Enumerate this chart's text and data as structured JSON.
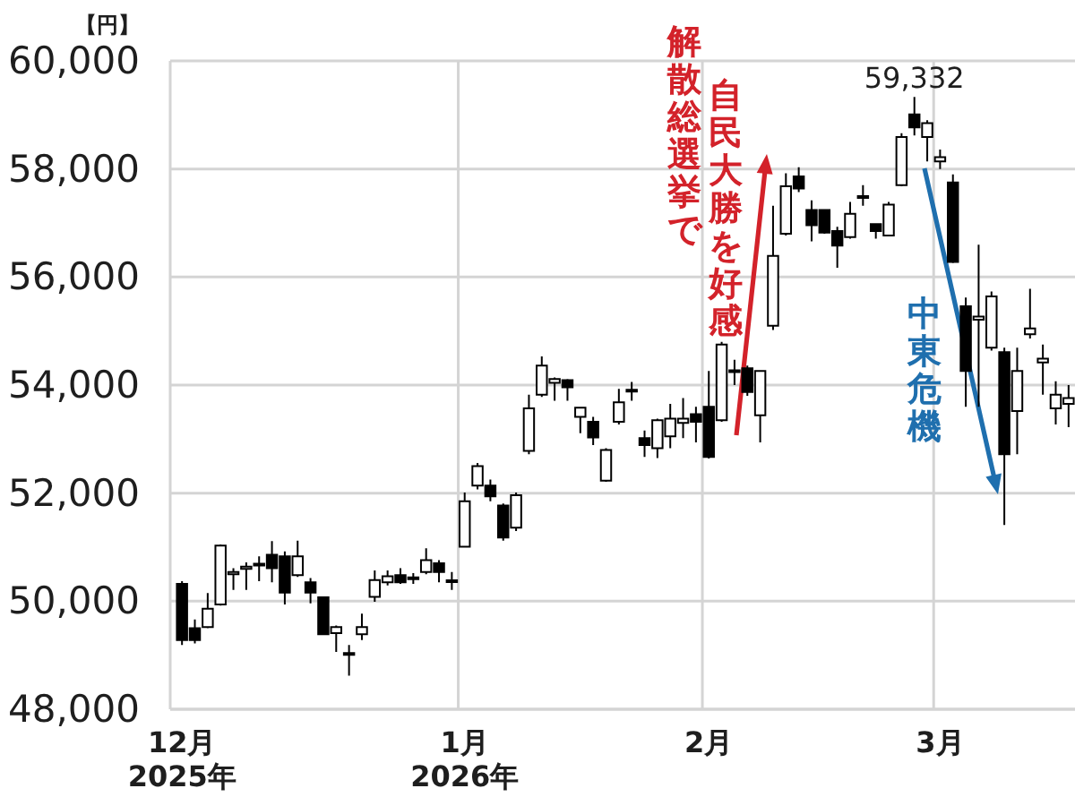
{
  "chart_data": {
    "type": "candlestick",
    "ylabel": "【円】",
    "grid": true,
    "ylim": [
      48000,
      60000
    ],
    "yticks": [
      {
        "value": 48000,
        "label": "48,000"
      },
      {
        "value": 50000,
        "label": "50,000"
      },
      {
        "value": 52000,
        "label": "52,000"
      },
      {
        "value": 54000,
        "label": "54,000"
      },
      {
        "value": 56000,
        "label": "56,000"
      },
      {
        "value": 58000,
        "label": "58,000"
      },
      {
        "value": 60000,
        "label": "60,000"
      }
    ],
    "categories": [
      "12月\n2025年",
      null,
      null,
      null,
      null,
      null,
      null,
      null,
      null,
      null,
      null,
      null,
      null,
      null,
      null,
      null,
      null,
      null,
      null,
      null,
      null,
      null,
      "1月\n2026年",
      null,
      null,
      null,
      null,
      null,
      null,
      null,
      null,
      null,
      null,
      null,
      null,
      null,
      null,
      null,
      null,
      null,
      null,
      "2月",
      null,
      null,
      null,
      null,
      null,
      null,
      null,
      null,
      null,
      null,
      null,
      null,
      null,
      null,
      null,
      null,
      null,
      "3月",
      null,
      null,
      null,
      null,
      null,
      null,
      null,
      null,
      null,
      null
    ],
    "ohlc": [
      [
        50320,
        50370,
        49190,
        49280
      ],
      [
        49500,
        49660,
        49220,
        49280
      ],
      [
        49520,
        50150,
        49500,
        49860
      ],
      [
        49940,
        51050,
        49920,
        51030
      ],
      [
        50500,
        50610,
        50210,
        50540
      ],
      [
        50600,
        50720,
        50210,
        50640
      ],
      [
        50660,
        50830,
        50370,
        50690
      ],
      [
        50860,
        51110,
        50350,
        50610
      ],
      [
        50830,
        50920,
        49940,
        50160
      ],
      [
        50480,
        51120,
        50450,
        50830
      ],
      [
        50350,
        50430,
        49960,
        50160
      ],
      [
        50070,
        50070,
        49370,
        49390
      ],
      [
        49410,
        49550,
        49060,
        49520
      ],
      [
        49040,
        49190,
        48620,
        49010
      ],
      [
        49390,
        49770,
        49280,
        49520
      ],
      [
        50080,
        50570,
        49990,
        50390
      ],
      [
        50350,
        50570,
        50290,
        50460
      ],
      [
        50480,
        50610,
        50320,
        50350
      ],
      [
        50410,
        50520,
        50320,
        50440
      ],
      [
        50540,
        50980,
        50500,
        50760
      ],
      [
        50700,
        50760,
        50350,
        50540
      ],
      [
        50360,
        50540,
        50210,
        50380
      ],
      [
        51010,
        52010,
        50990,
        51850
      ],
      [
        52140,
        52560,
        52070,
        52500
      ],
      [
        52140,
        52250,
        51850,
        51940
      ],
      [
        51770,
        51810,
        51120,
        51180
      ],
      [
        51360,
        52010,
        51300,
        51960
      ],
      [
        52780,
        53820,
        52720,
        53570
      ],
      [
        53820,
        54530,
        53780,
        54360
      ],
      [
        54040,
        54140,
        53710,
        54110
      ],
      [
        54090,
        54110,
        53710,
        53960
      ],
      [
        53410,
        53600,
        53110,
        53580
      ],
      [
        53320,
        53410,
        52890,
        53030
      ],
      [
        52230,
        52830,
        52210,
        52800
      ],
      [
        53320,
        53930,
        53270,
        53680
      ],
      [
        53880,
        54060,
        53710,
        53910
      ],
      [
        53020,
        53160,
        52670,
        52890
      ],
      [
        52830,
        53380,
        52650,
        53350
      ],
      [
        53050,
        53650,
        52830,
        53380
      ],
      [
        53300,
        53760,
        53020,
        53380
      ],
      [
        53460,
        53600,
        52940,
        53320
      ],
      [
        53600,
        54260,
        52640,
        52670
      ],
      [
        53350,
        54800,
        53320,
        54750
      ],
      [
        54240,
        54470,
        54000,
        54270
      ],
      [
        54310,
        54360,
        53800,
        53870
      ],
      [
        53440,
        54270,
        52940,
        54260
      ],
      [
        55100,
        57320,
        55020,
        56390
      ],
      [
        56800,
        57920,
        56770,
        57680
      ],
      [
        57860,
        58030,
        57570,
        57640
      ],
      [
        57240,
        57420,
        56660,
        56960
      ],
      [
        57240,
        57250,
        56800,
        56820
      ],
      [
        56850,
        56930,
        56170,
        56580
      ],
      [
        56740,
        57390,
        56710,
        57170
      ],
      [
        57470,
        57700,
        57320,
        57490
      ],
      [
        56980,
        56990,
        56710,
        56850
      ],
      [
        56770,
        57390,
        56750,
        57340
      ],
      [
        57700,
        58660,
        57680,
        58590
      ],
      [
        59010,
        59332,
        58620,
        58770
      ],
      [
        58590,
        58900,
        58140,
        58850
      ],
      [
        58140,
        58360,
        58000,
        58220
      ],
      [
        57750,
        57900,
        56260,
        56280
      ],
      [
        55460,
        55620,
        53600,
        54260
      ],
      [
        55210,
        56600,
        53600,
        55270
      ],
      [
        54690,
        55730,
        54640,
        55640
      ],
      [
        54610,
        54690,
        51410,
        52720
      ],
      [
        53520,
        54690,
        52720,
        54260
      ],
      [
        54940,
        55780,
        54860,
        55050
      ],
      [
        54420,
        54750,
        53820,
        54490
      ],
      [
        53570,
        54070,
        53270,
        53820
      ],
      [
        53650,
        54000,
        53220,
        53760
      ]
    ],
    "annotations": [
      {
        "text": "59,332",
        "y": 59332
      },
      "解散総選挙で",
      "自民大勝を好感",
      "中東危機"
    ]
  }
}
